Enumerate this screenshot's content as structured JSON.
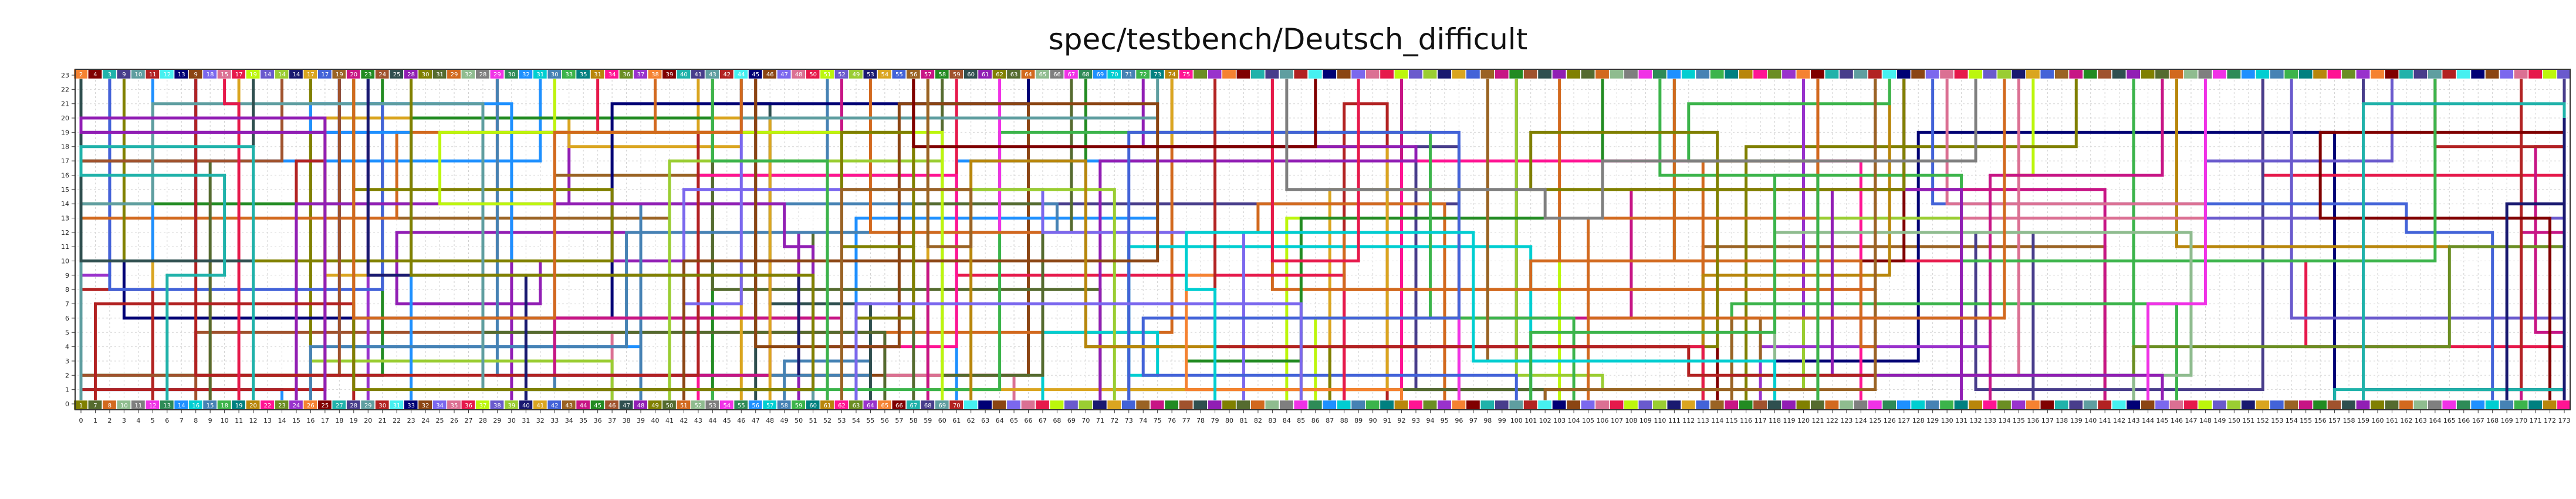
{
  "title": "spec/testbench/Deutsch_difficult",
  "chart_data": {
    "type": "qubit-routing-diagram",
    "title": "spec/testbench/Deutsch_difficult",
    "x_ticks": [
      0,
      1,
      2,
      3,
      4,
      5,
      6,
      7,
      8,
      9,
      10,
      11,
      12,
      13,
      14,
      15,
      16,
      17,
      18,
      19,
      20,
      21,
      22,
      23,
      24,
      25,
      26,
      27,
      28,
      29,
      30,
      31,
      32,
      33,
      34,
      35,
      36,
      37,
      38,
      39,
      40,
      41,
      42,
      43,
      44,
      45,
      46,
      47,
      48,
      49,
      50,
      51,
      52,
      53,
      54,
      55,
      56,
      57,
      58,
      59,
      60,
      61,
      62,
      63,
      64,
      65,
      66,
      67,
      68,
      69,
      70,
      71,
      72,
      73,
      74,
      75,
      76,
      77,
      78,
      79,
      80,
      81,
      82,
      83,
      84,
      85,
      86,
      87,
      88,
      89,
      90,
      91,
      92,
      93,
      94,
      95,
      96,
      97,
      98,
      99,
      100,
      101,
      102,
      103,
      104,
      105,
      106,
      107,
      108,
      109,
      110,
      111,
      112,
      113,
      114,
      115,
      116,
      117,
      118,
      119,
      120,
      121,
      122,
      123,
      124,
      125,
      126,
      127,
      128,
      129,
      130,
      131,
      132,
      133,
      134,
      135,
      136,
      137,
      138,
      139,
      140,
      141,
      142,
      143,
      144,
      145,
      146,
      147,
      148,
      149,
      150,
      151,
      152,
      153,
      154,
      155,
      156,
      157,
      158,
      159,
      160,
      161,
      162,
      163,
      164,
      165,
      166,
      167,
      168,
      169,
      170,
      171,
      172,
      173
    ],
    "y_ticks": [
      0,
      1,
      2,
      3,
      4,
      5,
      6,
      7,
      8,
      9,
      10,
      11,
      12,
      13,
      14,
      15,
      16,
      17,
      18,
      19,
      20,
      21,
      22,
      23
    ],
    "x_range": [
      0,
      173
    ],
    "y_range": [
      0,
      23
    ],
    "palette": [
      "#e6194b",
      "#3cb44b",
      "#4363d8",
      "#f58231",
      "#911eb4",
      "#46f0f0",
      "#f032e6",
      "#bcf60c",
      "#008080",
      "#9a6324",
      "#800000",
      "#808000",
      "#000075",
      "#2e8b57",
      "#6a5acd",
      "#b8860b",
      "#c71585",
      "#20b2aa",
      "#556b2f",
      "#8b4513",
      "#1e90ff",
      "#9acd32",
      "#ff1493",
      "#228b22",
      "#483d8b",
      "#d2691e",
      "#7b68ee",
      "#00ced1",
      "#191970",
      "#6b8e23",
      "#a0522d",
      "#5f9ea0",
      "#8fbc8f",
      "#db7093",
      "#4682b4",
      "#daa520",
      "#9932cc",
      "#2f4f4f",
      "#b22222",
      "#7f7f7f"
    ],
    "wire_seed": 20240517,
    "wire_count": 120,
    "top_pin_labels": [
      "2",
      "4",
      "3",
      "9",
      "10",
      "11",
      "12",
      "13",
      "9",
      "18",
      "15",
      "17",
      "19",
      "14",
      "14",
      "14",
      "17",
      "17",
      "19",
      "20",
      "23",
      "24",
      "25",
      "28",
      "30",
      "31",
      "29",
      "32",
      "28",
      "29",
      "30",
      "32",
      "31",
      "30",
      "33",
      "35",
      "31",
      "34",
      "36",
      "37",
      "38",
      "39",
      "40",
      "41",
      "43",
      "42",
      "44",
      "45",
      "46",
      "47",
      "48",
      "50",
      "51",
      "52",
      "49",
      "53",
      "54",
      "55",
      "56",
      "57",
      "58",
      "59",
      "60",
      "61",
      "62",
      "63",
      "64",
      "65",
      "66",
      "67",
      "68",
      "69",
      "70",
      "71",
      "72",
      "73",
      "74",
      "75"
    ],
    "bottom_pin_labels": [
      "1",
      "7",
      "8",
      "10",
      "11",
      "12",
      "13",
      "14",
      "16",
      "15",
      "18",
      "19",
      "20",
      "22",
      "23",
      "24",
      "26",
      "25",
      "27",
      "28",
      "29",
      "30",
      "31",
      "33",
      "32",
      "34",
      "35",
      "36",
      "37",
      "38",
      "39",
      "40",
      "41",
      "42",
      "43",
      "44",
      "45",
      "46",
      "47",
      "48",
      "49",
      "50",
      "51",
      "52",
      "53",
      "54",
      "55",
      "56",
      "57",
      "58",
      "59",
      "60",
      "61",
      "62",
      "63",
      "64",
      "65",
      "66",
      "67",
      "68",
      "69",
      "70"
    ]
  }
}
